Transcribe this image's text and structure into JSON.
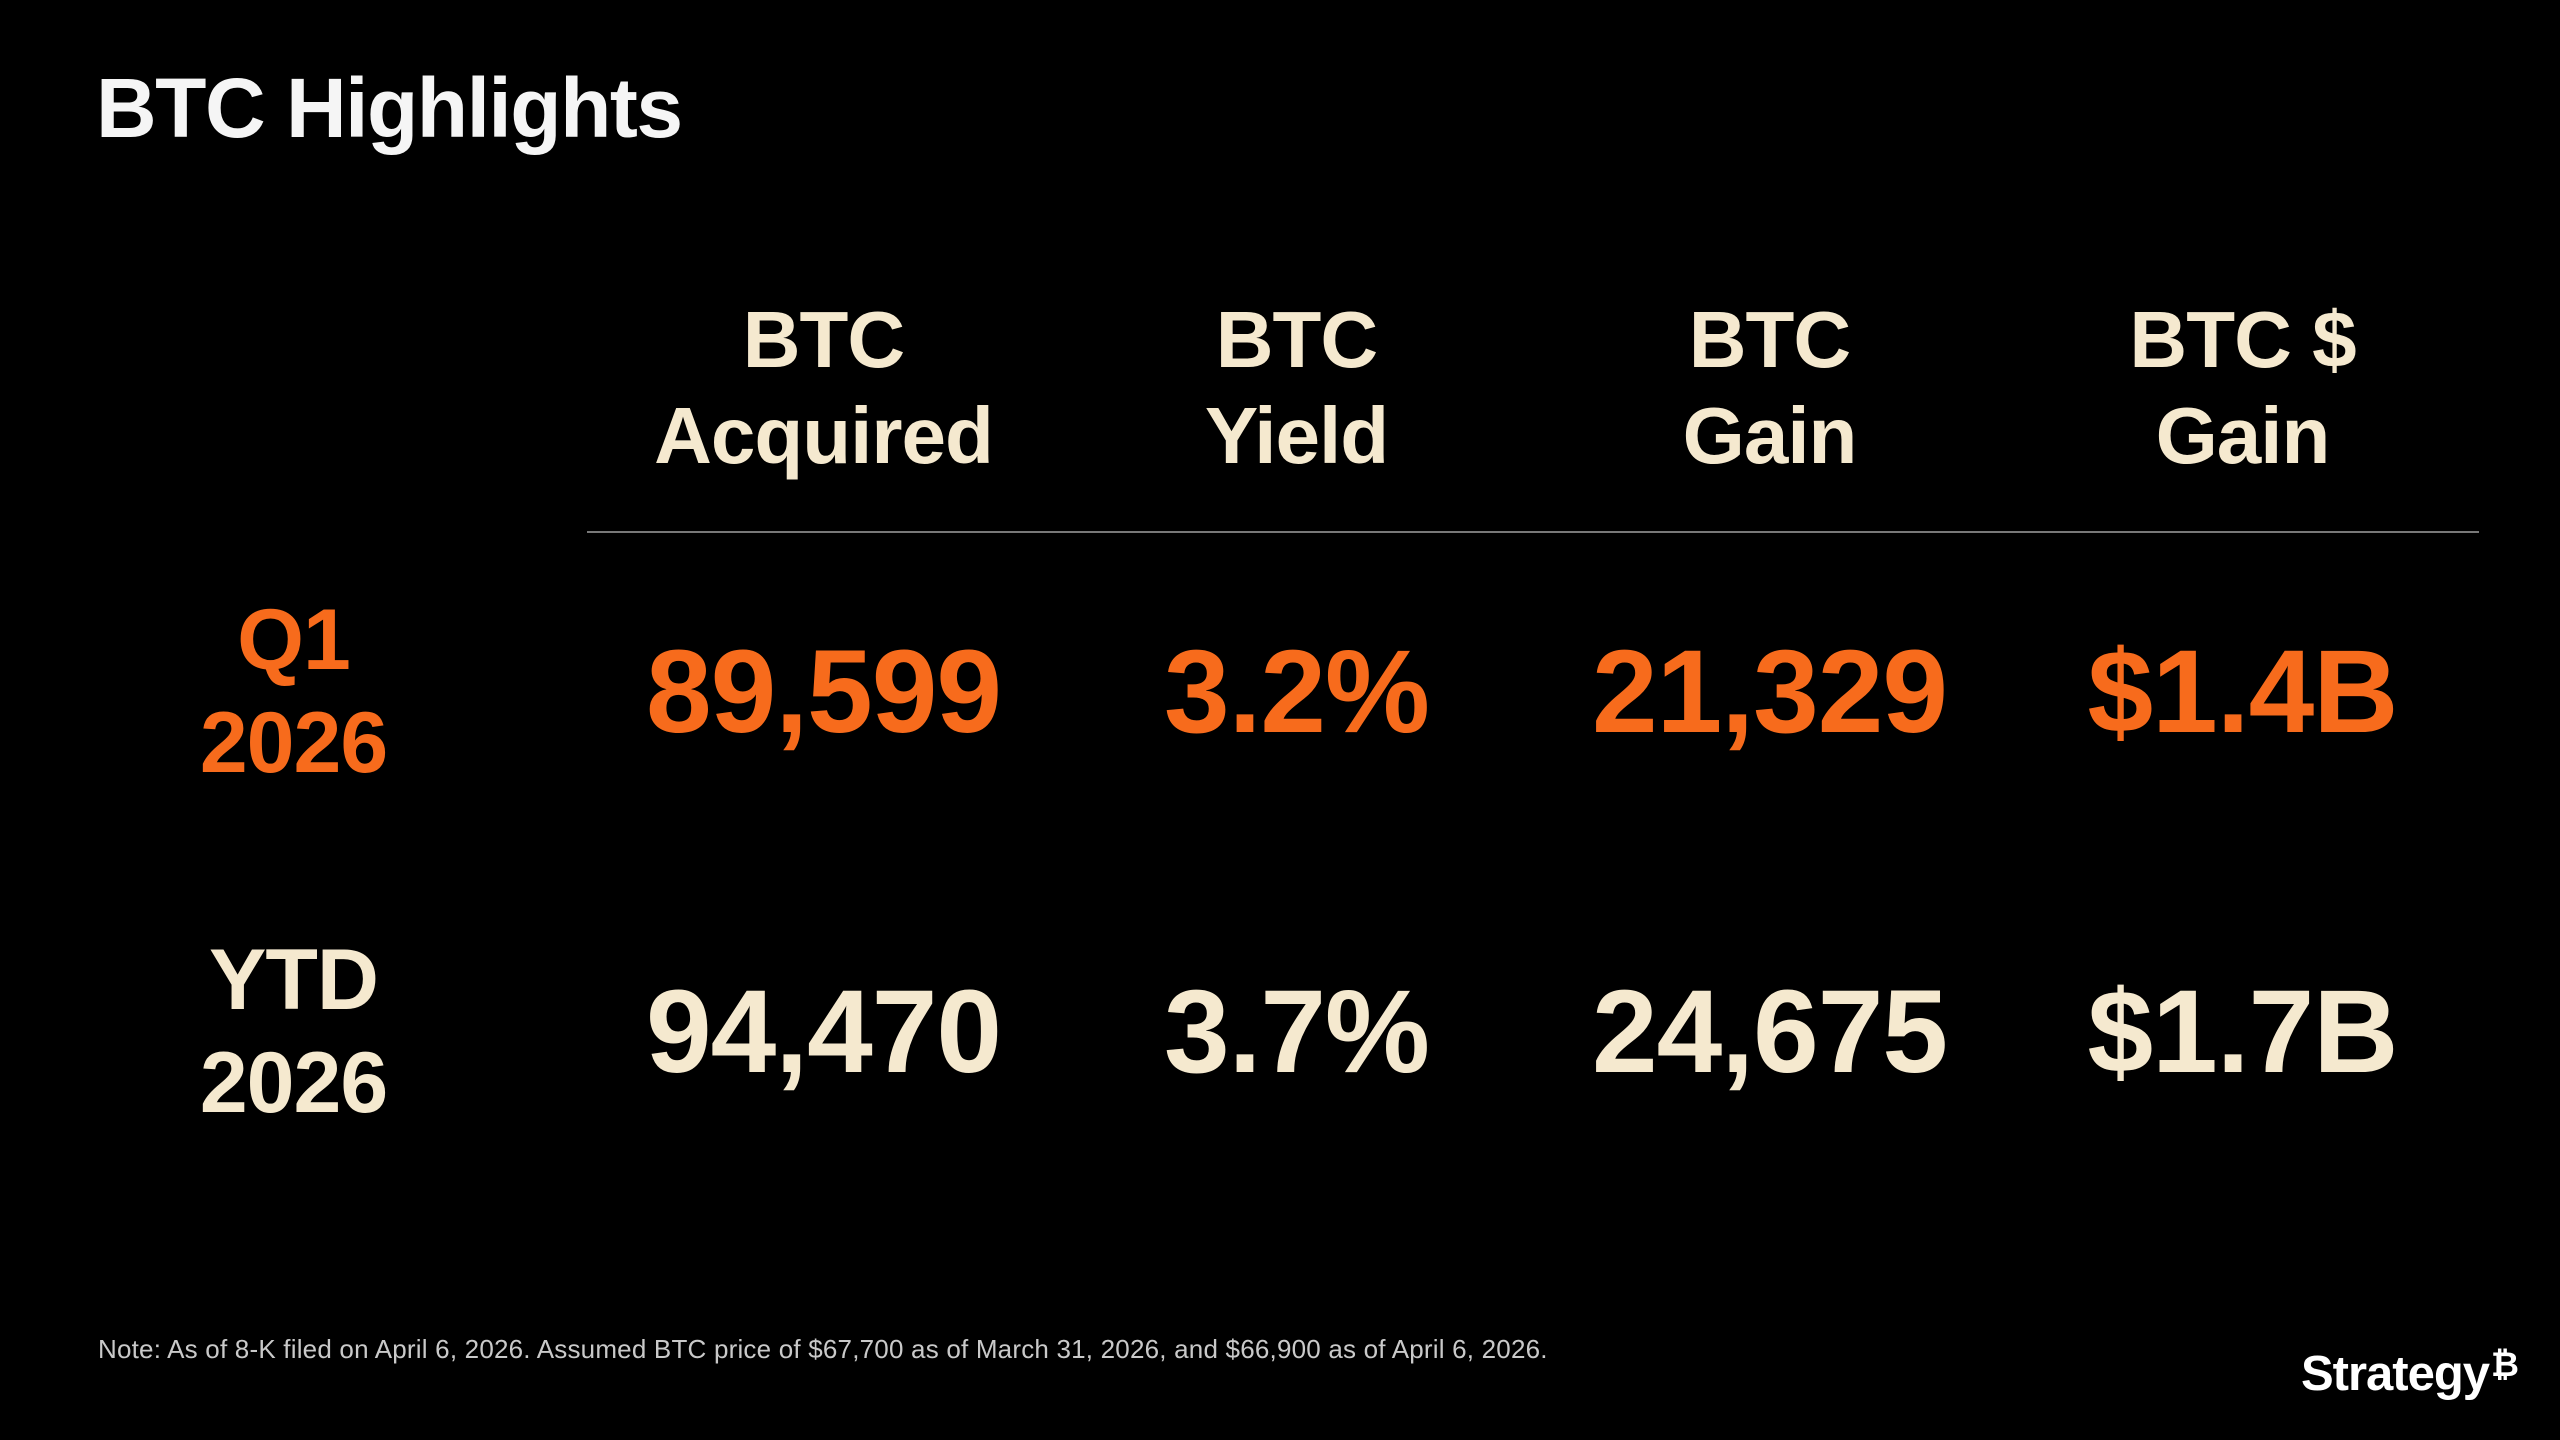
{
  "slide": {
    "title": "BTC Highlights",
    "note": "Note: As of 8-K filed on April 6, 2026. Assumed BTC price of $67,700 as of March 31, 2026, and $66,900 as of April 6, 2026.",
    "logo": {
      "text": "Strategy",
      "btc_symbol": "₿"
    }
  },
  "chart_data": {
    "type": "table",
    "title": "BTC Highlights",
    "columns": [
      "BTC\nAcquired",
      "BTC\nYield",
      "BTC\nGain",
      "BTC $\nGain"
    ],
    "rows": [
      {
        "label": "Q1\n2026",
        "values": [
          "89,599",
          "3.2%",
          "21,329",
          "$1.4B"
        ]
      },
      {
        "label": "YTD\n2026",
        "values": [
          "94,470",
          "3.7%",
          "24,675",
          "$1.7B"
        ]
      }
    ]
  },
  "colors": {
    "background": "#000000",
    "accent_orange": "#F76B1C",
    "cream": "#F5E9CF",
    "title_white": "#F5F5F5",
    "note_gray": "#C9C9C9",
    "divider_gray": "#787878",
    "logo_white": "#FFFFFF"
  }
}
